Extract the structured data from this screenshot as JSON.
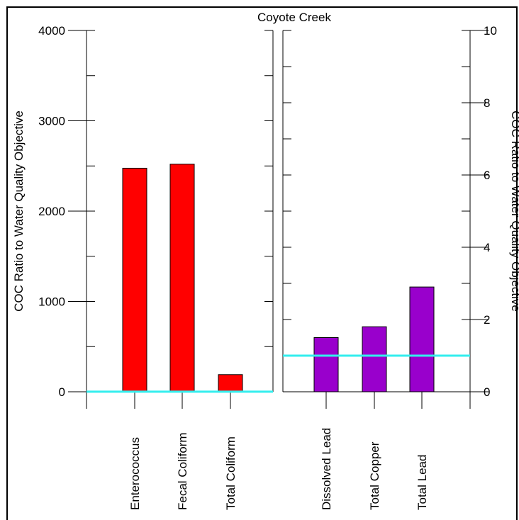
{
  "chart_data": {
    "type": "bar",
    "title": "Coyote Creek",
    "colors": {
      "left_bars": "#ff0000",
      "right_bars": "#9900cc",
      "objective_line": "#33eeee",
      "frame": "#000000"
    },
    "panels": [
      {
        "categories": [
          "Enterococcus",
          "Fecal Coliform",
          "Total Coliform"
        ],
        "values": [
          2475,
          2520,
          190
        ],
        "ylabel": "COC Ratio to Water Quality Objective",
        "ylim": [
          0,
          4000
        ],
        "yticks": [
          0,
          1000,
          2000,
          3000,
          4000
        ],
        "objective_line": 1
      },
      {
        "categories": [
          "Dissolved Lead",
          "Total Copper",
          "Total Lead"
        ],
        "values": [
          1.5,
          1.8,
          2.9
        ],
        "ylabel": "COC Ratio to Water Quality Objective",
        "ylim": [
          0,
          10
        ],
        "yticks": [
          0,
          2,
          4,
          6,
          8,
          10
        ],
        "objective_line": 1
      }
    ]
  }
}
